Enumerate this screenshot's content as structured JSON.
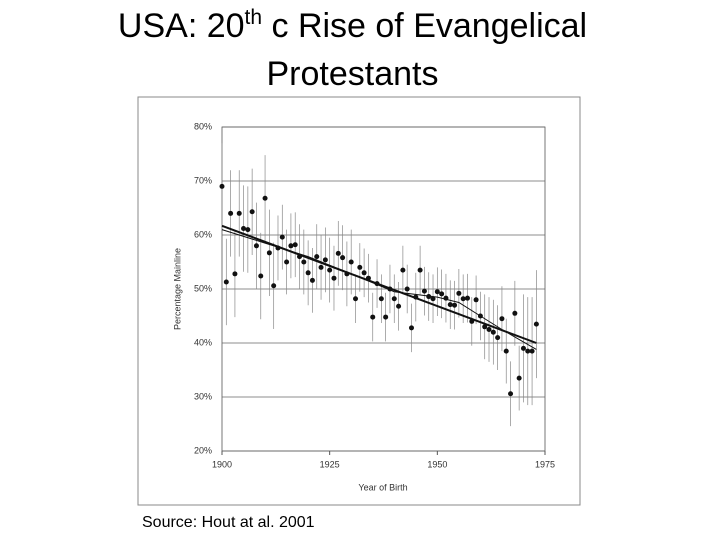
{
  "chart_data": {
    "type": "scatter",
    "title_parts": [
      "USA: 20",
      "th",
      " c Rise of Evangelical",
      "Protestants"
    ],
    "source": "Source: Hout at al. 2001",
    "xlabel": "Year of Birth",
    "ylabel": "Percentage Mainline",
    "xlim": [
      1900,
      1975
    ],
    "xticks": [
      1900,
      1925,
      1950,
      1975
    ],
    "ylim": [
      20,
      80
    ],
    "yticks": [
      {
        "value": 20,
        "label": "20%"
      },
      {
        "value": 30,
        "label": "30%"
      },
      {
        "value": 40,
        "label": "40%"
      },
      {
        "value": 50,
        "label": "50%"
      },
      {
        "value": 60,
        "label": "60%"
      },
      {
        "value": 70,
        "label": "70%"
      },
      {
        "value": 80,
        "label": "80%"
      }
    ],
    "grid": true,
    "color": "#111",
    "x": [
      1900,
      1901,
      1902,
      1903,
      1904,
      1905,
      1906,
      1907,
      1908,
      1909,
      1910,
      1911,
      1912,
      1913,
      1914,
      1915,
      1916,
      1917,
      1918,
      1919,
      1920,
      1921,
      1922,
      1923,
      1924,
      1925,
      1926,
      1927,
      1928,
      1929,
      1930,
      1931,
      1932,
      1933,
      1934,
      1935,
      1936,
      1937,
      1938,
      1939,
      1940,
      1941,
      1942,
      1943,
      1944,
      1945,
      1946,
      1947,
      1948,
      1949,
      1950,
      1951,
      1952,
      1953,
      1954,
      1955,
      1956,
      1957,
      1958,
      1959,
      1960,
      1961,
      1962,
      1963,
      1964,
      1965,
      1966,
      1967,
      1968,
      1969,
      1970,
      1971,
      1972,
      1973
    ],
    "values": [
      69,
      51.3,
      64,
      52.8,
      64,
      61.2,
      61,
      64.3,
      58,
      52.4,
      66.8,
      56.7,
      50.6,
      57.6,
      59.6,
      55,
      58,
      58.2,
      56,
      55,
      53,
      51.6,
      56,
      54,
      55.4,
      53.5,
      52,
      56.6,
      55.8,
      52.8,
      55,
      48.2,
      54,
      53,
      52,
      44.8,
      51,
      48.2,
      44.8,
      50,
      48.2,
      46.8,
      53.5,
      50,
      42.8,
      48.5,
      53.5,
      49.6,
      48.6,
      48.2,
      49.5,
      49.1,
      48.3,
      47.1,
      47,
      49.2,
      48.2,
      48.3,
      44,
      48,
      45,
      43,
      42.5,
      42,
      41,
      44.5,
      38.5,
      30.6,
      45.5,
      33.5,
      39,
      38.5,
      38.5,
      43.5
    ],
    "errors": [
      8,
      8,
      8,
      8,
      8,
      8,
      8,
      8,
      8,
      8,
      8,
      8,
      8,
      6,
      6,
      6,
      6,
      6,
      6,
      6,
      6,
      6,
      6,
      6,
      6,
      6,
      6,
      6,
      6,
      6,
      6,
      4.5,
      4.5,
      4.5,
      4.5,
      4.5,
      4.5,
      4.5,
      4.5,
      4.5,
      4.5,
      4.5,
      4.5,
      4.5,
      4.5,
      4.5,
      4.5,
      4.5,
      4.5,
      4.5,
      4.5,
      4.5,
      4.5,
      4.5,
      4.5,
      4.5,
      4.5,
      4.5,
      4.5,
      4.5,
      4.5,
      6,
      6,
      6,
      6,
      6,
      6,
      6,
      6,
      6,
      10,
      10,
      10,
      10
    ],
    "trend": {
      "x": [
        1900,
        1973
      ],
      "values": [
        61.7,
        40
      ]
    },
    "smooth": {
      "x": [
        1900,
        1910,
        1920,
        1930,
        1940,
        1950,
        1955,
        1960,
        1965,
        1973
      ],
      "values": [
        61,
        58.5,
        56,
        52.8,
        49.5,
        48.5,
        47.5,
        45,
        42.5,
        38.8
      ]
    }
  }
}
